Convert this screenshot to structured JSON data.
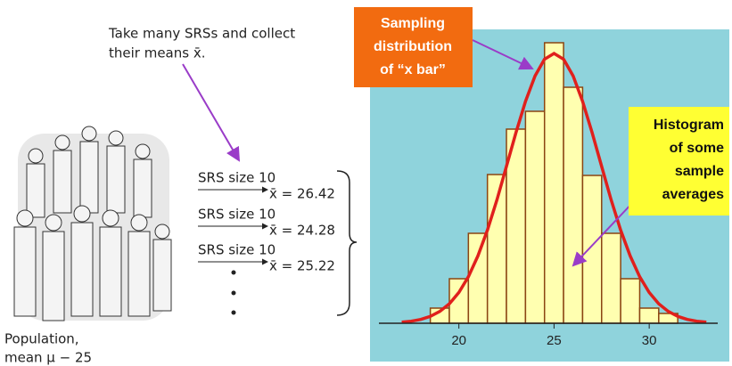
{
  "instruction": [
    "Take many SRSs and collect",
    "their means x̄."
  ],
  "samples": [
    {
      "label": "SRS size 10",
      "mean": "x̄ = 26.42"
    },
    {
      "label": "SRS size 10",
      "mean": "x̄ = 24.28"
    },
    {
      "label": "SRS size 10",
      "mean": "x̄ = 25.22"
    }
  ],
  "population": [
    "Population,",
    "mean μ − 25"
  ],
  "chart_data": {
    "type": "histogram",
    "callout_sampling": [
      "Sampling",
      "distribution",
      "of “x bar”"
    ],
    "callout_histogram": [
      "Histogram",
      "of some",
      "sample",
      "averages"
    ],
    "bins": [
      18.5,
      19.5,
      20.5,
      21.5,
      22.5,
      23.5,
      24.5,
      25.5,
      26.5,
      27.5,
      28.5,
      29.5,
      30.5,
      31.5
    ],
    "values": [
      17,
      50,
      101,
      167,
      218,
      238,
      315,
      265,
      166,
      101,
      50,
      17,
      11
    ],
    "color": "#ffffb0",
    "edge_color": "#8b4513",
    "curve": {
      "color": "#e0201c",
      "x": [
        17,
        17.5,
        18,
        18.5,
        19,
        19.5,
        20,
        20.5,
        21,
        21.5,
        22,
        22.5,
        23,
        23.5,
        24,
        24.5,
        25,
        25.5,
        26,
        26.5,
        27,
        27.5,
        28,
        28.5,
        29,
        29.5,
        30,
        30.5,
        31,
        31.5,
        32,
        32.5,
        33
      ],
      "values": [
        1.2,
        2.3,
        4.3,
        7.7,
        13.3,
        21.9,
        34.6,
        52.2,
        75.6,
        104.6,
        138.7,
        176.1,
        214.1,
        249.2,
        277.8,
        296.5,
        303,
        296.5,
        277.8,
        249.2,
        214.1,
        176.1,
        138.7,
        104.6,
        75.6,
        52.2,
        34.6,
        21.9,
        13.3,
        7.7,
        4.3,
        2.3,
        1.2
      ]
    },
    "xlim": [
      15.8,
      33.6
    ],
    "ylim": [
      0,
      330
    ],
    "xticks": [
      20,
      25,
      30
    ]
  }
}
